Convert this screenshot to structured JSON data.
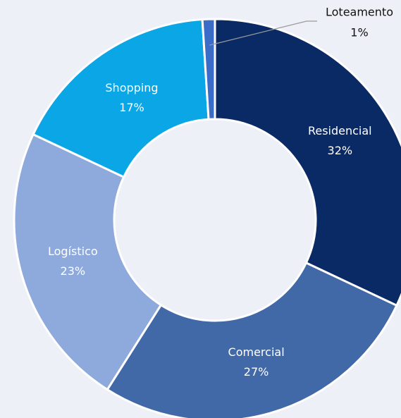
{
  "chart_data": {
    "type": "donut",
    "categories": [
      "Residencial",
      "Comercial",
      "Logístico",
      "Shopping",
      "Loteamento"
    ],
    "values": [
      32,
      27,
      23,
      17,
      1
    ],
    "value_labels": [
      "32%",
      "27%",
      "23%",
      "17%",
      "1%"
    ],
    "colors": [
      "#0a2a66",
      "#4169a8",
      "#8eaadc",
      "#0aa6e6",
      "#3a6cc8"
    ]
  }
}
